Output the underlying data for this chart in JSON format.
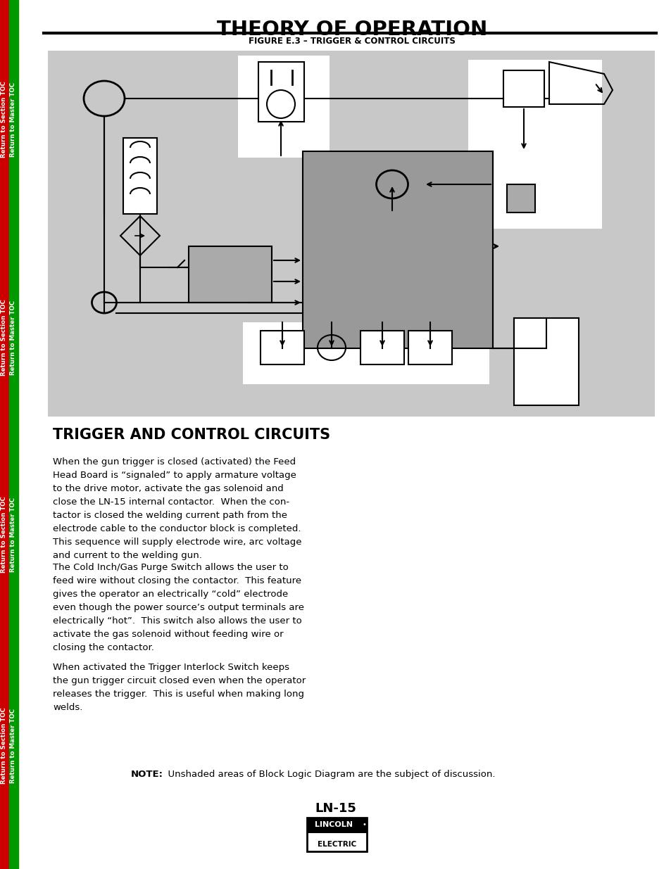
{
  "title": "THEORY OF OPERATION",
  "figure_caption": "FIGURE E.3 – TRIGGER & CONTROL CIRCUITS",
  "section_heading": "TRIGGER AND CONTROL CIRCUITS",
  "paragraph1": "When the gun trigger is closed (activated) the Feed\nHead Board is “signaled” to apply armature voltage\nto the drive motor, activate the gas solenoid and\nclose the LN-15 internal contactor.  When the con-\ntactor is closed the welding current path from the\nelectrode cable to the conductor block is completed.\nThis sequence will supply electrode wire, arc voltage\nand current to the welding gun.",
  "paragraph2": "The Cold Inch/Gas Purge Switch allows the user to\nfeed wire without closing the contactor.  This feature\ngives the operator an electrically “cold” electrode\neven though the power source’s output terminals are\nelectrically “hot”.  This switch also allows the user to\nactivate the gas solenoid without feeding wire or\nclosing the contactor.",
  "paragraph3": "When activated the Trigger Interlock Switch keeps\nthe gun trigger circuit closed even when the operator\nreleases the trigger.  This is useful when making long\nwelds.",
  "note_bold": "NOTE:",
  "note_text": "  Unshaded areas of Block Logic Diagram are the subject of discussion.",
  "model": "LN-15",
  "bg_color": "#ffffff",
  "gray_bg": "#c8c8c8",
  "dark_gray": "#999999",
  "med_gray": "#aaaaaa",
  "left_bar_red": "#cc0000",
  "left_bar_green": "#009900"
}
